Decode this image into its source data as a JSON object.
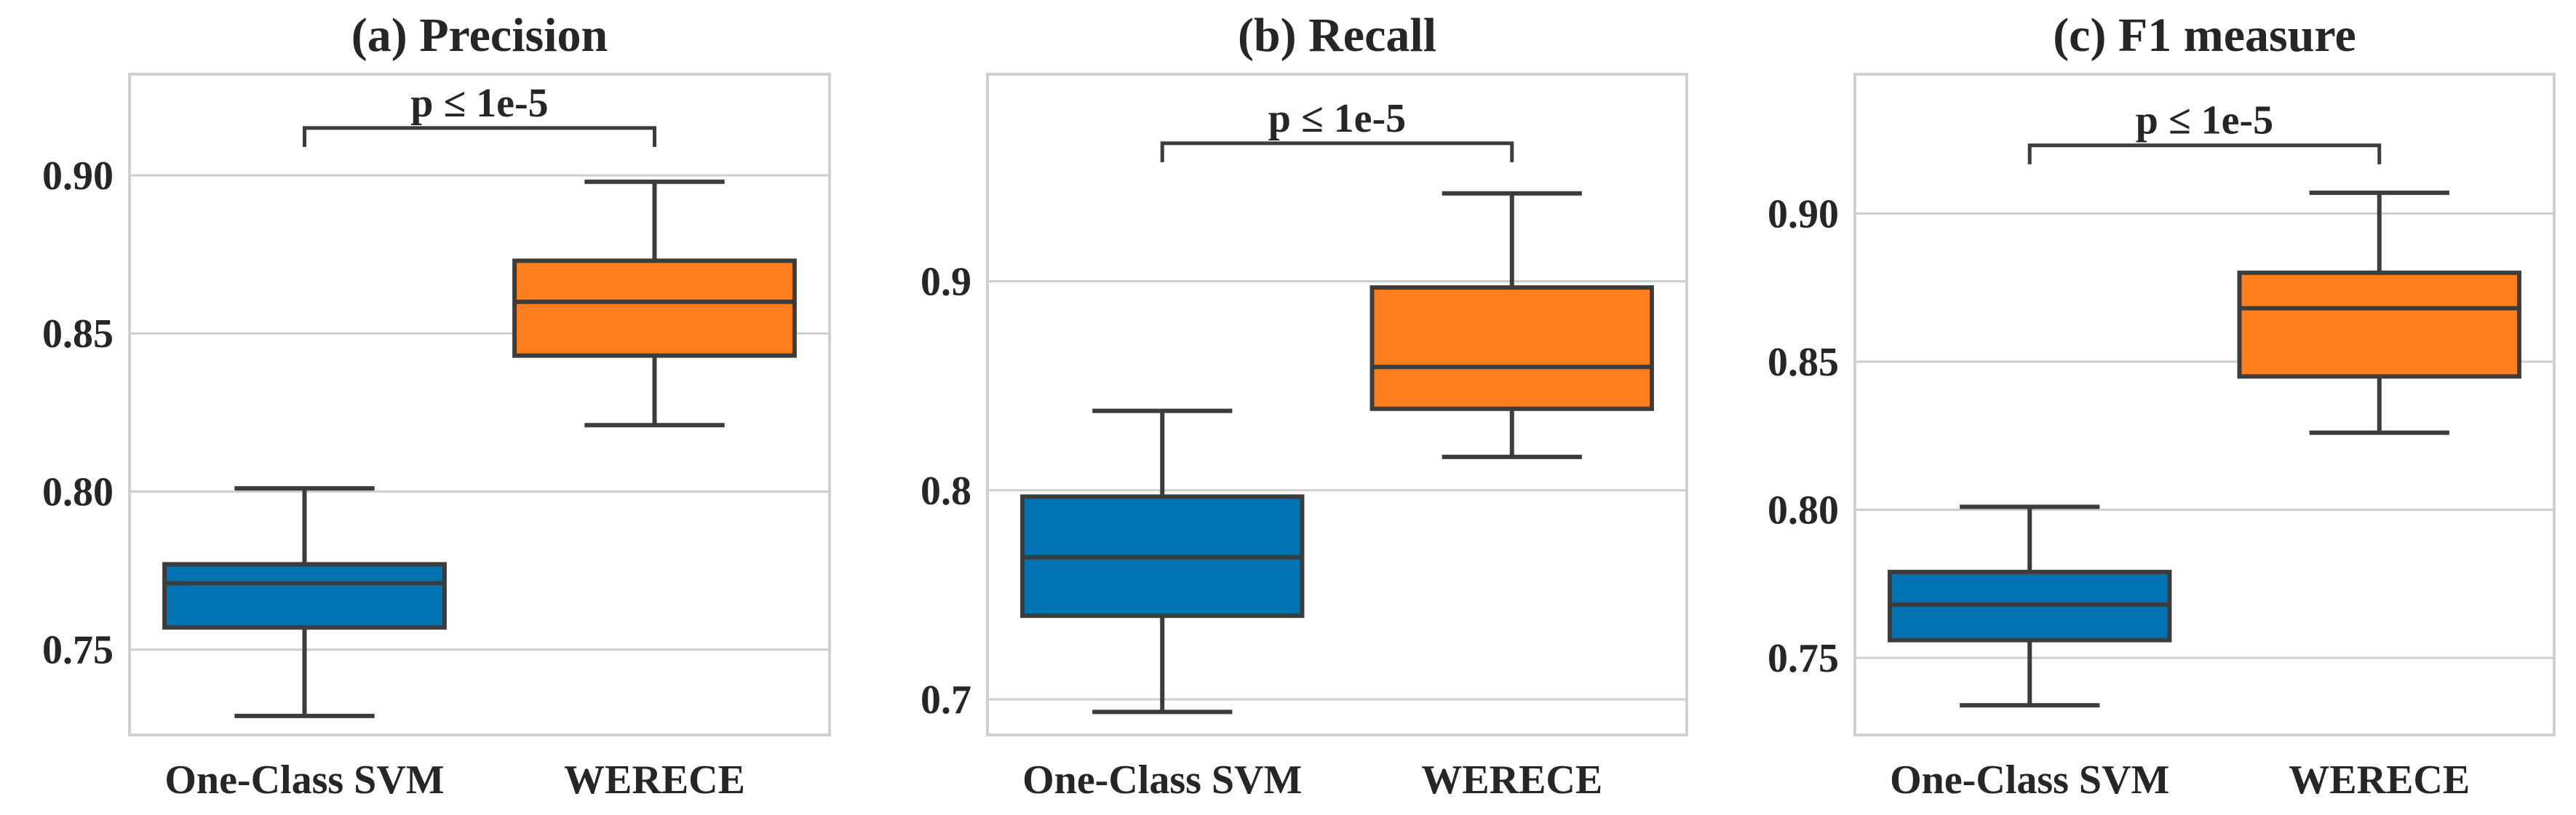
{
  "chart_data": [
    {
      "type": "box",
      "title": "(a) Precision",
      "categories": [
        "One-Class SVM",
        "WERECE"
      ],
      "series": [
        {
          "name": "One-Class SVM",
          "whisker_low": 0.729,
          "q1": 0.757,
          "median": 0.771,
          "q3": 0.777,
          "whisker_high": 0.801,
          "color": "#0173B2"
        },
        {
          "name": "WERECE",
          "whisker_low": 0.821,
          "q1": 0.843,
          "median": 0.86,
          "q3": 0.873,
          "whisker_high": 0.898,
          "color": "#FF7F1E"
        }
      ],
      "ylim": [
        0.723,
        0.932
      ],
      "yticks": [
        0.75,
        0.8,
        0.85,
        0.9
      ],
      "ytick_labels": [
        "0.75",
        "0.80",
        "0.85",
        "0.90"
      ],
      "significance": {
        "label": "p ≤ 1e-5",
        "level": 0.915
      },
      "grid": true
    },
    {
      "type": "box",
      "title": "(b) Recall",
      "categories": [
        "One-Class SVM",
        "WERECE"
      ],
      "series": [
        {
          "name": "One-Class SVM",
          "whisker_low": 0.694,
          "q1": 0.74,
          "median": 0.768,
          "q3": 0.797,
          "whisker_high": 0.838,
          "color": "#0173B2"
        },
        {
          "name": "WERECE",
          "whisker_low": 0.816,
          "q1": 0.839,
          "median": 0.859,
          "q3": 0.897,
          "whisker_high": 0.942,
          "color": "#FF7F1E"
        }
      ],
      "ylim": [
        0.683,
        0.999
      ],
      "yticks": [
        0.7,
        0.8,
        0.9
      ],
      "ytick_labels": [
        "0.7",
        "0.8",
        "0.9"
      ],
      "significance": {
        "label": "p ≤ 1e-5",
        "level": 0.966
      },
      "grid": true
    },
    {
      "type": "box",
      "title": "(c) F1 measure",
      "categories": [
        "One-Class SVM",
        "WERECE"
      ],
      "series": [
        {
          "name": "One-Class SVM",
          "whisker_low": 0.734,
          "q1": 0.756,
          "median": 0.768,
          "q3": 0.779,
          "whisker_high": 0.801,
          "color": "#0173B2"
        },
        {
          "name": "WERECE",
          "whisker_low": 0.826,
          "q1": 0.845,
          "median": 0.868,
          "q3": 0.88,
          "whisker_high": 0.907,
          "color": "#FF7F1E"
        }
      ],
      "ylim": [
        0.724,
        0.947
      ],
      "yticks": [
        0.75,
        0.8,
        0.85,
        0.9
      ],
      "ytick_labels": [
        "0.75",
        "0.80",
        "0.85",
        "0.90"
      ],
      "significance": {
        "label": "p ≤ 1e-5",
        "level": 0.923
      },
      "grid": true
    }
  ]
}
